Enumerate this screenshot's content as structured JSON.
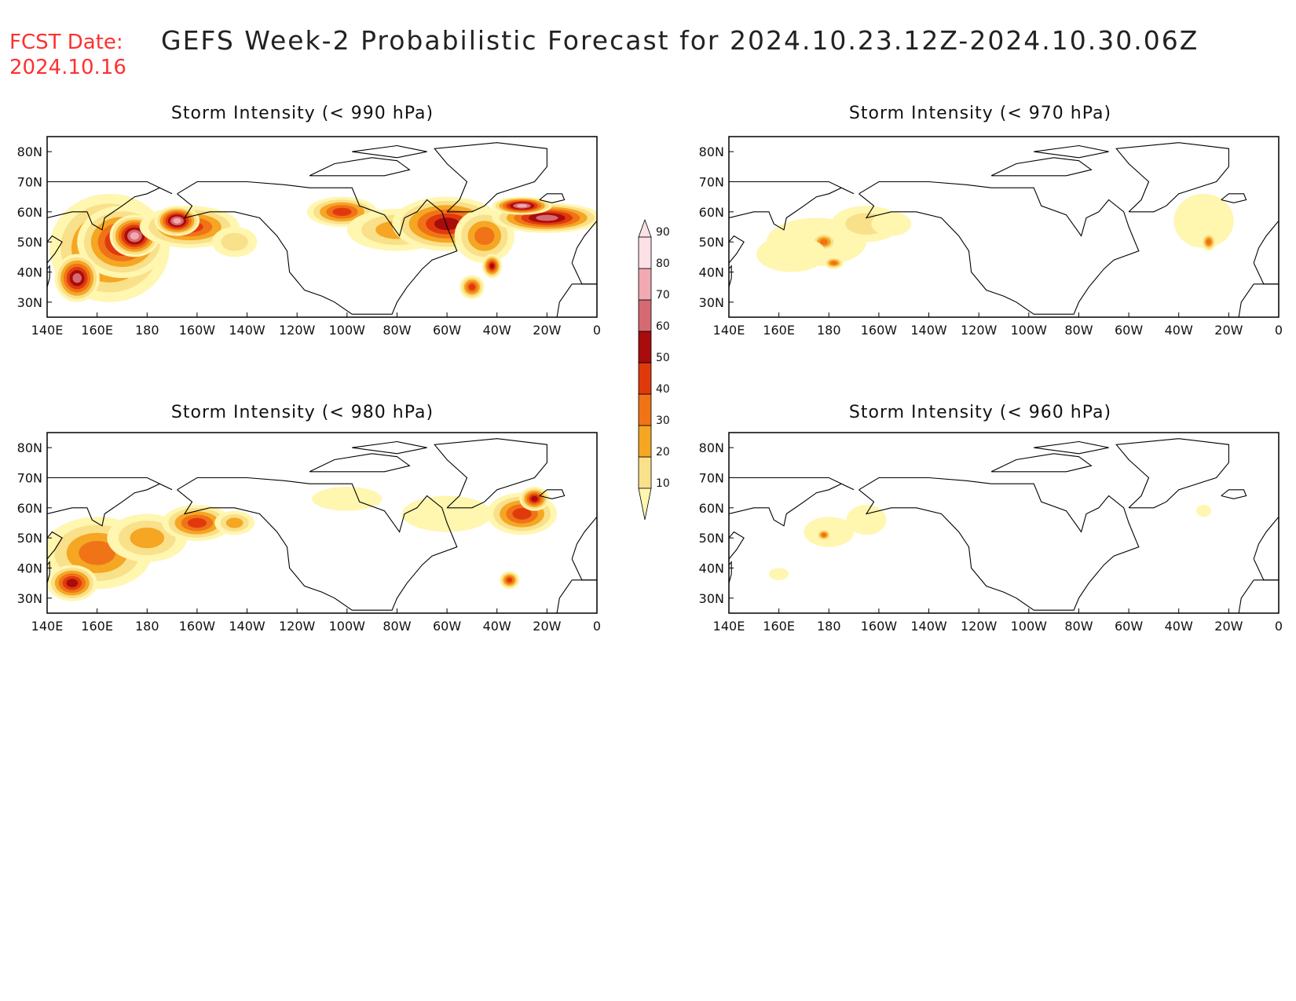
{
  "header": {
    "fcst_label": "FCST Date:",
    "fcst_date": "2024.10.16",
    "title": "GEFS Week-2 Probabilistic Forecast for 2024.10.23.12Z-2024.10.30.06Z"
  },
  "colors": {
    "fcst_date": "#ff3030",
    "scale": [
      "#fff6b0",
      "#f9e08a",
      "#f5a623",
      "#f07318",
      "#e03a0c",
      "#a80c0c",
      "#d66a73",
      "#f1a9b2",
      "#fce1e6"
    ]
  },
  "x_ticks": [
    "140E",
    "160E",
    "180",
    "160W",
    "140W",
    "120W",
    "100W",
    "80W",
    "60W",
    "40W",
    "20W",
    "0"
  ],
  "y_ticks": [
    "80N",
    "70N",
    "60N",
    "50N",
    "40N",
    "30N"
  ],
  "colorbar": {
    "labels": [
      "10",
      "20",
      "30",
      "40",
      "50",
      "60",
      "70",
      "80",
      "90"
    ]
  },
  "panels": [
    {
      "id": "p990",
      "title": "Storm Intensity (< 990 hPa)",
      "blobs": [
        {
          "lon": 165,
          "lat": 48,
          "rx": 24,
          "ry": 18,
          "level": 50
        },
        {
          "lon": 170,
          "lat": 50,
          "rx": 18,
          "ry": 12,
          "level": 65
        },
        {
          "lon": 175,
          "lat": 52,
          "rx": 10,
          "ry": 7,
          "level": 85
        },
        {
          "lon": 152,
          "lat": 38,
          "rx": 9,
          "ry": 8,
          "level": 75
        },
        {
          "lon": 197,
          "lat": 55,
          "rx": 20,
          "ry": 7,
          "level": 55
        },
        {
          "lon": 192,
          "lat": 57,
          "rx": 9,
          "ry": 5,
          "level": 80
        },
        {
          "lon": 215,
          "lat": 50,
          "rx": 9,
          "ry": 5,
          "level": 25
        },
        {
          "lon": 258,
          "lat": 60,
          "rx": 14,
          "ry": 5,
          "level": 55
        },
        {
          "lon": 280,
          "lat": 54,
          "rx": 20,
          "ry": 7,
          "level": 35
        },
        {
          "lon": 300,
          "lat": 56,
          "rx": 22,
          "ry": 9,
          "level": 65
        },
        {
          "lon": 315,
          "lat": 52,
          "rx": 12,
          "ry": 9,
          "level": 45
        },
        {
          "lon": 340,
          "lat": 58,
          "rx": 22,
          "ry": 5,
          "level": 70
        },
        {
          "lon": 330,
          "lat": 62,
          "rx": 12,
          "ry": 3,
          "level": 85
        },
        {
          "lon": 310,
          "lat": 35,
          "rx": 5,
          "ry": 4,
          "level": 55
        },
        {
          "lon": 318,
          "lat": 42,
          "rx": 4,
          "ry": 4,
          "level": 60
        }
      ]
    },
    {
      "id": "p970",
      "title": "Storm Intensity (< 970 hPa)",
      "blobs": [
        {
          "lon": 175,
          "lat": 50,
          "rx": 20,
          "ry": 8,
          "level": 15
        },
        {
          "lon": 178,
          "lat": 50,
          "rx": 5,
          "ry": 3,
          "level": 45
        },
        {
          "lon": 165,
          "lat": 46,
          "rx": 14,
          "ry": 6,
          "level": 15
        },
        {
          "lon": 182,
          "lat": 43,
          "rx": 4,
          "ry": 2,
          "level": 40
        },
        {
          "lon": 195,
          "lat": 56,
          "rx": 14,
          "ry": 6,
          "level": 25
        },
        {
          "lon": 205,
          "lat": 56,
          "rx": 8,
          "ry": 4,
          "level": 15
        },
        {
          "lon": 330,
          "lat": 57,
          "rx": 12,
          "ry": 9,
          "level": 15
        },
        {
          "lon": 332,
          "lat": 50,
          "rx": 3,
          "ry": 3,
          "level": 40
        }
      ]
    },
    {
      "id": "p980",
      "title": "Storm Intensity (< 980 hPa)",
      "blobs": [
        {
          "lon": 160,
          "lat": 45,
          "rx": 22,
          "ry": 12,
          "level": 40
        },
        {
          "lon": 150,
          "lat": 35,
          "rx": 10,
          "ry": 6,
          "level": 60
        },
        {
          "lon": 180,
          "lat": 50,
          "rx": 16,
          "ry": 8,
          "level": 30
        },
        {
          "lon": 200,
          "lat": 55,
          "rx": 14,
          "ry": 6,
          "level": 55
        },
        {
          "lon": 215,
          "lat": 55,
          "rx": 8,
          "ry": 4,
          "level": 30
        },
        {
          "lon": 260,
          "lat": 63,
          "rx": 14,
          "ry": 4,
          "level": 15
        },
        {
          "lon": 300,
          "lat": 58,
          "rx": 18,
          "ry": 6,
          "level": 15
        },
        {
          "lon": 330,
          "lat": 58,
          "rx": 14,
          "ry": 7,
          "level": 50
        },
        {
          "lon": 335,
          "lat": 63,
          "rx": 6,
          "ry": 4,
          "level": 65
        },
        {
          "lon": 325,
          "lat": 36,
          "rx": 4,
          "ry": 3,
          "level": 55
        }
      ]
    },
    {
      "id": "p960",
      "title": "Storm Intensity (< 960 hPa)",
      "blobs": [
        {
          "lon": 180,
          "lat": 52,
          "rx": 10,
          "ry": 5,
          "level": 15
        },
        {
          "lon": 178,
          "lat": 51,
          "rx": 3,
          "ry": 2,
          "level": 45
        },
        {
          "lon": 195,
          "lat": 56,
          "rx": 8,
          "ry": 5,
          "level": 15
        },
        {
          "lon": 160,
          "lat": 38,
          "rx": 4,
          "ry": 2,
          "level": 15
        },
        {
          "lon": 330,
          "lat": 59,
          "rx": 3,
          "ry": 2,
          "level": 15
        }
      ]
    }
  ]
}
